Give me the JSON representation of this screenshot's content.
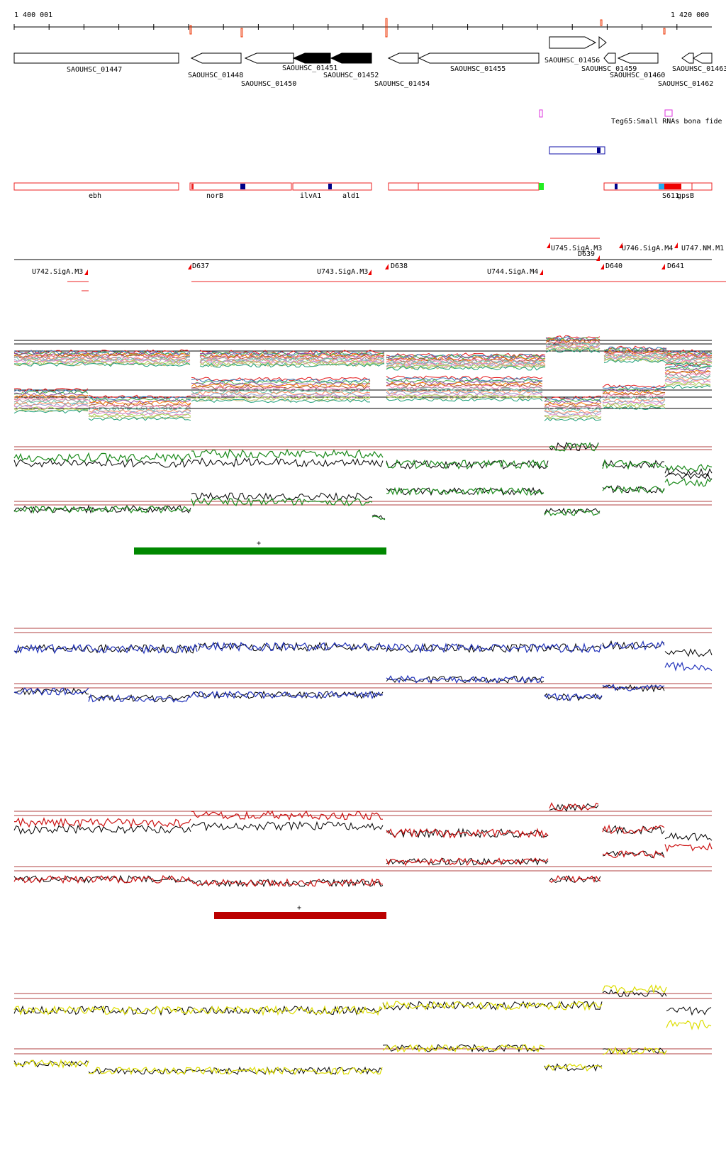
{
  "coords": {
    "start_label": "1 400 001",
    "end_label": "1 420 000"
  },
  "genes": [
    {
      "label": "SAOUHSC_01447",
      "dir": "+",
      "filled": false
    },
    {
      "label": "SAOUHSC_01448",
      "dir": "-",
      "filled": false
    },
    {
      "label": "SAOUHSC_01450",
      "dir": "-",
      "filled": false
    },
    {
      "label": "SAOUHSC_01451",
      "dir": "-",
      "filled": true
    },
    {
      "label": "SAOUHSC_01452",
      "dir": "-",
      "filled": true
    },
    {
      "label": "SAOUHSC_01454",
      "dir": "-",
      "filled": false
    },
    {
      "label": "SAOUHSC_01455",
      "dir": "-",
      "filled": false
    },
    {
      "label": "SAOUHSC_01456",
      "dir": "+",
      "filled": false
    },
    {
      "label": "SAOUHSC_01459",
      "dir": "-",
      "filled": false
    },
    {
      "label": "SAOUHSC_01460",
      "dir": "-",
      "filled": false
    },
    {
      "label": "SAOUHSC_01462",
      "dir": "-",
      "filled": false
    },
    {
      "label": "SAOUHSC_01463",
      "dir": "-",
      "filled": false
    }
  ],
  "srna": {
    "label": "Teg65:Small RNAs bona fide",
    "color": "#dd33dd"
  },
  "annotations": [
    {
      "label": "ebh"
    },
    {
      "label": "norB"
    },
    {
      "label": "ilvA1"
    },
    {
      "label": "ald1"
    },
    {
      "label": "S611"
    },
    {
      "label": "gpsB"
    }
  ],
  "transcription_units": [
    {
      "label": "U742.SigA.M3"
    },
    {
      "label": "D637"
    },
    {
      "label": "U743.SigA.M3"
    },
    {
      "label": "D638"
    },
    {
      "label": "U744.SigA.M4"
    },
    {
      "label": "U745.SigA.M3"
    },
    {
      "label": "D639"
    },
    {
      "label": "D640"
    },
    {
      "label": "U746.SigA.M4"
    },
    {
      "label": "D641"
    },
    {
      "label": "U747.NM.M1"
    }
  ],
  "track_colors": {
    "green": "#1a8a1a",
    "blue": "#2233bb",
    "red": "#cc1111",
    "yellow": "#dddd00",
    "annotation_red": "#ee2222",
    "guide": "#b04040"
  },
  "highlights": [
    {
      "track": "green",
      "label": "+",
      "color": "#008800"
    },
    {
      "track": "red",
      "label": "+",
      "color": "#bb0000"
    }
  ]
}
